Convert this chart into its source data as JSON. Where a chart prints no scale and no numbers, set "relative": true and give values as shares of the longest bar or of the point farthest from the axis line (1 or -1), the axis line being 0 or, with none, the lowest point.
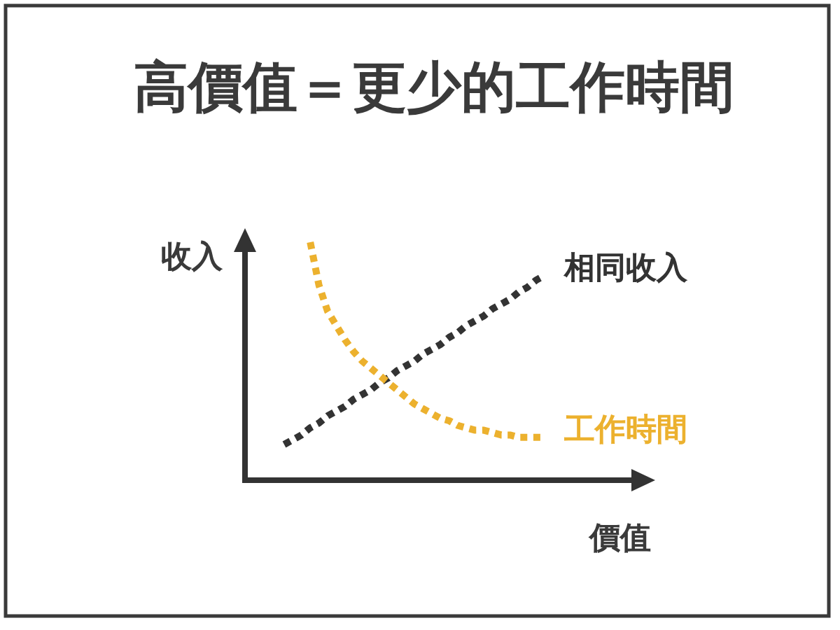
{
  "chart_data": {
    "type": "line",
    "title": "高價值＝更少的工作時間",
    "xlabel": "價值",
    "ylabel": "收入",
    "relative": true,
    "line_style": "dotted",
    "categories": [
      null,
      null,
      null,
      null,
      null,
      null,
      null,
      null,
      null,
      null,
      null,
      null,
      null,
      null,
      null,
      null,
      null,
      null,
      null,
      null,
      null,
      null,
      null,
      null,
      null,
      null,
      null,
      null,
      null,
      null,
      null
    ],
    "series": [
      {
        "name": "相同收入",
        "color": "#333333",
        "values": [
          0.15,
          0.17,
          0.19,
          0.22,
          0.24,
          0.27,
          0.29,
          0.31,
          0.34,
          0.36,
          0.38,
          0.41,
          0.43,
          0.46,
          0.48,
          0.5,
          0.53,
          0.55,
          0.57,
          0.6,
          0.62,
          0.65,
          0.67,
          0.69,
          0.72,
          0.74,
          0.76,
          0.79,
          0.81,
          0.84,
          0.86
        ]
      },
      {
        "name": "工作時間",
        "color": "#ecb12e",
        "values": [
          null,
          null,
          null,
          1.0,
          0.82,
          0.71,
          0.65,
          0.59,
          0.54,
          0.5,
          0.47,
          0.44,
          0.41,
          0.38,
          0.35,
          0.32,
          0.3,
          0.28,
          0.26,
          0.25,
          0.23,
          0.22,
          0.21,
          0.21,
          0.2,
          0.19,
          0.19,
          0.18,
          0.18,
          0.18,
          0.18
        ]
      }
    ]
  }
}
